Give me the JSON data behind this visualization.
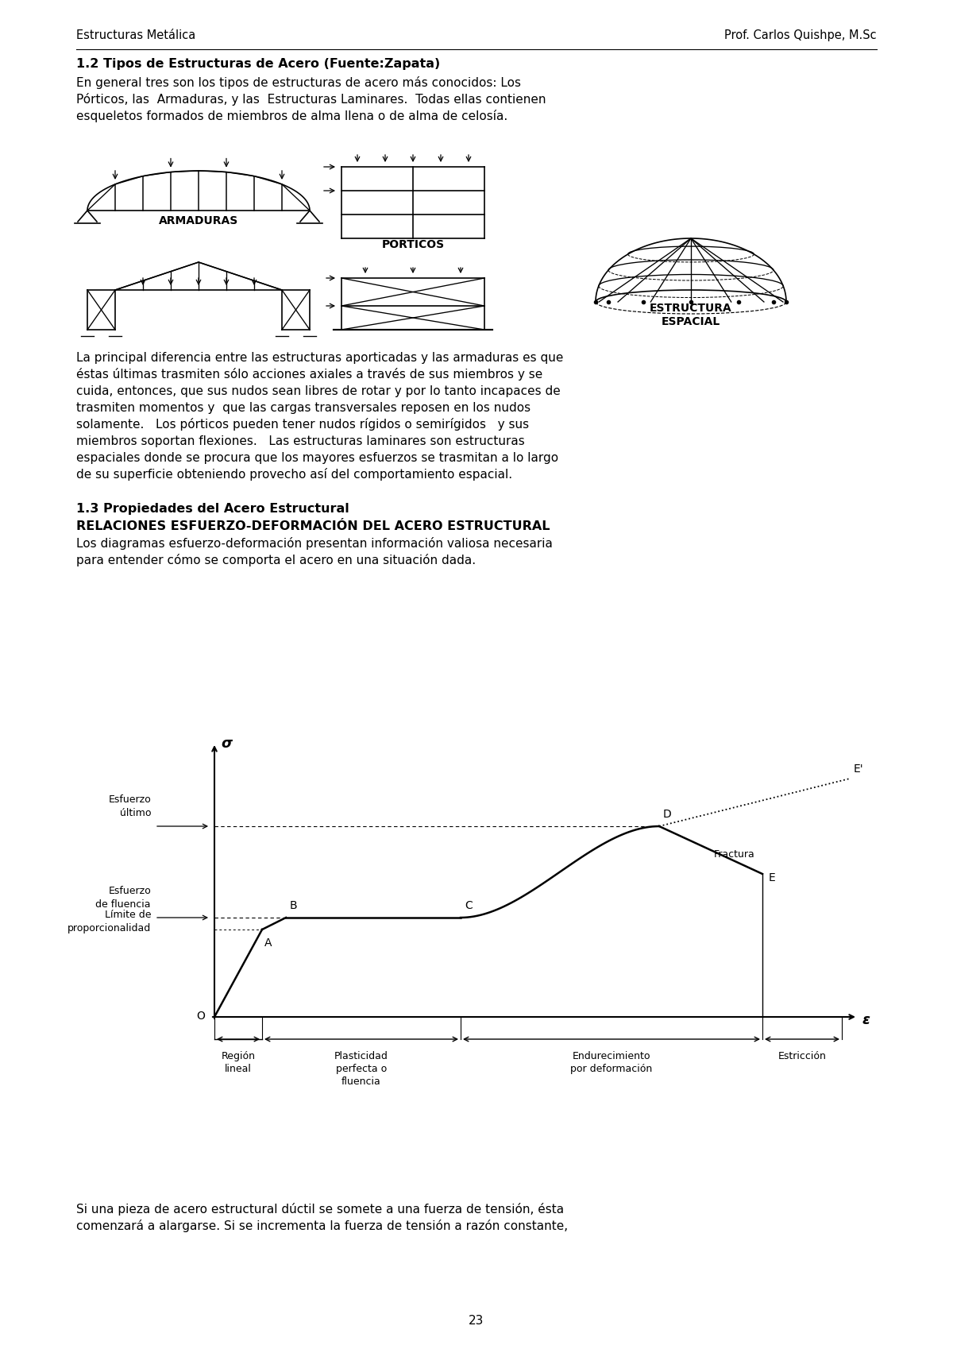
{
  "header_left": "Estructuras Metálica",
  "header_right": "Prof. Carlos Quishpe, M.Sc",
  "section_title": "1.2 Tipos de Estructuras de Acero (Fuente:Zapata)",
  "para1_line1": "En general tres son los tipos de estructuras de acero más conocidos: Los",
  "para1_line2": "Pórticos, las  Armaduras, y las  Estructuras Laminares.  Todas ellas contienen",
  "para1_line3": "esqueletos formados de miembros de alma llena o de alma de celosía.",
  "label_armaduras": "ARMADURAS",
  "label_porticos": "PORTICOS",
  "label_espacial1": "ESTRUCTURA",
  "label_espacial2": "ESPACIAL",
  "para2_line1": "La principal diferencia entre las estructuras aporticadas y las armaduras es que",
  "para2_line2": "éstas últimas trasmiten sólo acciones axiales a través de sus miembros y se",
  "para2_line3": "cuida, entonces, que sus nudos sean libres de rotar y por lo tanto incapaces de",
  "para2_line4": "trasmiten momentos y  que las cargas transversales reposen en los nudos",
  "para2_line5": "solamente.   Los pórticos pueden tener nudos rígidos o semirígidos   y sus",
  "para2_line6": "miembros soportan flexiones.   Las estructuras laminares son estructuras",
  "para2_line7": "espaciales donde se procura que los mayores esfuerzos se trasmitan a lo largo",
  "para2_line8": "de su superficie obteniendo provecho así del comportamiento espacial.",
  "section2_title": "1.3 Propiedades del Acero Estructural",
  "section2_subtitle": "RELACIONES ESFUERZO-DEFORMACIÓN DEL ACERO ESTRUCTURAL",
  "para3_line1": "Los diagramas esfuerzo-deformación presentan información valiosa necesaria",
  "para3_line2": "para entender cómo se comporta el acero en una situación dada.",
  "para4_line1": "Si una pieza de acero estructural dúctil se somete a una fuerza de tensión, ésta",
  "para4_line2": "comenzará a alargarse. Si se incrementa la fuerza de tensión a razón constante,",
  "page_number": "23",
  "bg_color": "#ffffff",
  "text_color": "#000000"
}
